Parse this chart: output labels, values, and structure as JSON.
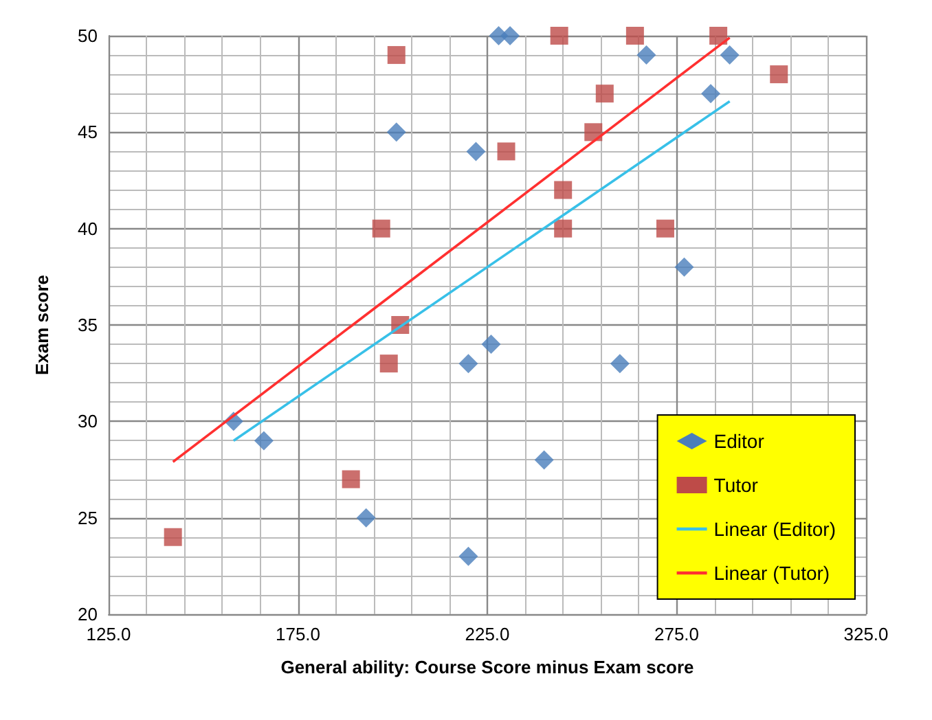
{
  "chart_data": {
    "type": "scatter",
    "xlabel": "General ability: Course Score minus Exam score",
    "ylabel": "Exam score",
    "xlim": [
      125,
      325
    ],
    "ylim": [
      20,
      50
    ],
    "xticks": [
      {
        "value": 125,
        "label": "125.0"
      },
      {
        "value": 175,
        "label": "175.0"
      },
      {
        "value": 225,
        "label": "225.0"
      },
      {
        "value": 275,
        "label": "275.0"
      },
      {
        "value": 325,
        "label": "325.0"
      }
    ],
    "yticks": [
      20,
      25,
      30,
      35,
      40,
      45,
      50
    ],
    "grid": true,
    "legend": "bottom right",
    "series": [
      {
        "name": "Editor",
        "type": "scatter",
        "marker": "diamond",
        "color": "#4a7ebb",
        "x": [
          158,
          166,
          193,
          201,
          220,
          220,
          222,
          226,
          228,
          231,
          240,
          260,
          267,
          277,
          284,
          289
        ],
        "values": [
          30,
          29,
          25,
          45,
          33,
          23,
          44,
          34,
          50,
          50,
          28,
          33,
          49,
          38,
          47,
          49
        ]
      },
      {
        "name": "Tutor",
        "type": "scatter",
        "marker": "square",
        "color": "#be4b48",
        "x": [
          142,
          189,
          197,
          199,
          201,
          202,
          230,
          244,
          264,
          286,
          302,
          256,
          253,
          245,
          245,
          272
        ],
        "values": [
          24,
          27,
          40,
          33,
          49,
          35,
          44,
          50,
          50,
          50,
          48,
          47,
          45,
          42,
          40,
          40
        ]
      },
      {
        "name": "Linear (Editor)",
        "type": "line",
        "marker": "none",
        "color": "#38c0e8",
        "x": [
          158,
          289
        ],
        "values": [
          29,
          46.6
        ]
      },
      {
        "name": "Linear (Tutor)",
        "type": "line",
        "marker": "none",
        "color": "#ff3030",
        "x": [
          142,
          289
        ],
        "values": [
          27.9,
          49.9
        ]
      }
    ]
  }
}
